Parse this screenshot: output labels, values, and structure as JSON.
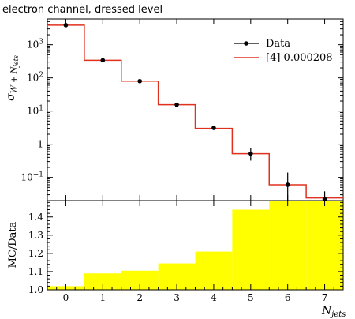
{
  "chart_data": [
    {
      "type": "line",
      "title": "electron channel, dressed level",
      "ylabel": "σ",
      "ylabel_sub": "W + N",
      "ylabel_subsub": "jets",
      "xlabel": "N",
      "xlabel_sub": "jets",
      "xlim": [
        -0.5,
        7.5
      ],
      "ylim": [
        0.02,
        6000
      ],
      "yscale": "log",
      "x_ticks": [
        0,
        1,
        2,
        3,
        4,
        5,
        6,
        7
      ],
      "y_tick_labels": [
        {
          "value": 0.1,
          "base": "10",
          "exp": "−1"
        },
        {
          "value": 1,
          "base": "1",
          "exp": ""
        },
        {
          "value": 10,
          "base": "10",
          "exp": "1"
        },
        {
          "value": 100,
          "base": "10",
          "exp": "2"
        },
        {
          "value": 1000,
          "base": "10",
          "exp": "3"
        }
      ],
      "legend": {
        "position": "top-right",
        "entries": [
          "Data",
          "[4] 0.000208"
        ]
      },
      "series": [
        {
          "name": "Data",
          "style": "points",
          "color": "#000000",
          "x": [
            0,
            1,
            2,
            3,
            4,
            5,
            6,
            7
          ],
          "values": [
            3900,
            340,
            80,
            15.5,
            3.1,
            0.52,
            0.06,
            0.022
          ],
          "err_low": [
            3400,
            320,
            76,
            14.6,
            2.7,
            0.32,
            0.02,
            0.016
          ],
          "err_high": [
            4400,
            360,
            84,
            16.4,
            3.5,
            0.75,
            0.14,
            0.038
          ]
        },
        {
          "name": "[4] 0.000208",
          "style": "step",
          "color": "#e0301e",
          "x": [
            0,
            1,
            2,
            3,
            4,
            5,
            6,
            7
          ],
          "values": [
            3900,
            340,
            80,
            15.5,
            3.0,
            0.52,
            0.06,
            0.024
          ]
        }
      ]
    },
    {
      "type": "bar",
      "ylabel": "MC/Data",
      "xlim": [
        -0.5,
        7.5
      ],
      "ylim": [
        1.0,
        1.49
      ],
      "y_ticks": [
        "1.0",
        "1.1",
        "1.2",
        "1.3",
        "1.4"
      ],
      "band_color": "#ffff00",
      "categories": [
        0,
        1,
        2,
        3,
        4,
        5,
        6,
        7
      ],
      "band_high": [
        1.02,
        1.09,
        1.105,
        1.145,
        1.21,
        1.44,
        1.49,
        1.49
      ],
      "band_low": [
        1.0,
        1.0,
        1.0,
        1.0,
        1.0,
        1.0,
        1.0,
        1.0
      ]
    }
  ]
}
